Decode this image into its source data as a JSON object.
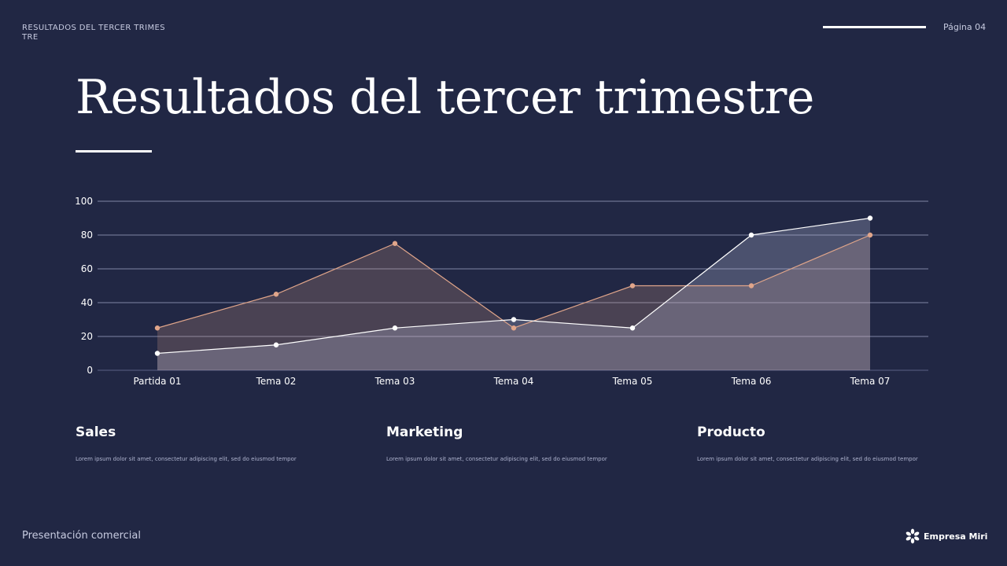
{
  "header": {
    "section_label": "RESULTADOS DEL TERCER TRIMESTRE",
    "page_number": "Página 04"
  },
  "title": "Resultados del tercer trimestre",
  "chart_data": {
    "type": "area",
    "categories": [
      "Partida 01",
      "Tema 02",
      "Tema 03",
      "Tema 04",
      "Tema 05",
      "Tema 06",
      "Tema 07"
    ],
    "series": [
      {
        "values": [
          25,
          45,
          75,
          25,
          50,
          50,
          80
        ],
        "color": "#e0a58a"
      },
      {
        "values": [
          10,
          15,
          25,
          30,
          25,
          80,
          90
        ],
        "color": "#ffffff"
      }
    ],
    "ylim": [
      0,
      100
    ],
    "yticks": [
      0,
      20,
      40,
      60,
      80,
      100
    ],
    "grid": true,
    "legend": "none"
  },
  "columns": [
    {
      "heading": "Sales",
      "body": "Lorem ipsum dolor sit amet, consectetur adipiscing elit, sed do eiusmod tempor"
    },
    {
      "heading": "Marketing",
      "body": "Lorem ipsum dolor sit amet, consectetur adipiscing elit, sed do eiusmod tempor"
    },
    {
      "heading": "Producto",
      "body": "Lorem ipsum dolor sit amet, consectetur adipiscing elit, sed do eiusmod tempor"
    }
  ],
  "footer": {
    "label": "Presentación comercial",
    "brand": "Empresa Miri",
    "brand_icon": "asterisk-flower-icon"
  },
  "colors": {
    "background": "#212744",
    "accent": "#e0a58a",
    "text": "#ffffff"
  }
}
